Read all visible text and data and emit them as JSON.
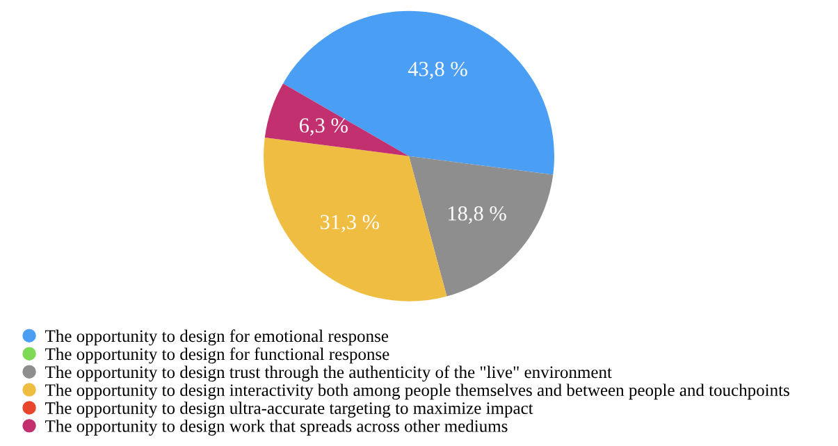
{
  "chart_data": {
    "type": "pie",
    "categories": [
      "The opportunity to design for emotional response",
      "The opportunity to design for functional response",
      "The opportunity to design trust through the authenticity of the \"live\" environment",
      "The opportunity to design interactivity both among people themselves and between people and touchpoints",
      "The opportunity to design ultra-accurate targeting to maximize impact",
      "The opportunity to design work that spreads across other mediums"
    ],
    "values": [
      43.8,
      0,
      18.8,
      31.3,
      0,
      6.3
    ],
    "colors": [
      "#4a9ff5",
      "#7ed957",
      "#8e8e8e",
      "#efbd42",
      "#e8462c",
      "#c2306f"
    ],
    "value_labels": [
      "43,8 %",
      null,
      "18,8 %",
      "31,3 %",
      null,
      "6,3 %"
    ],
    "legend": "bottom"
  }
}
